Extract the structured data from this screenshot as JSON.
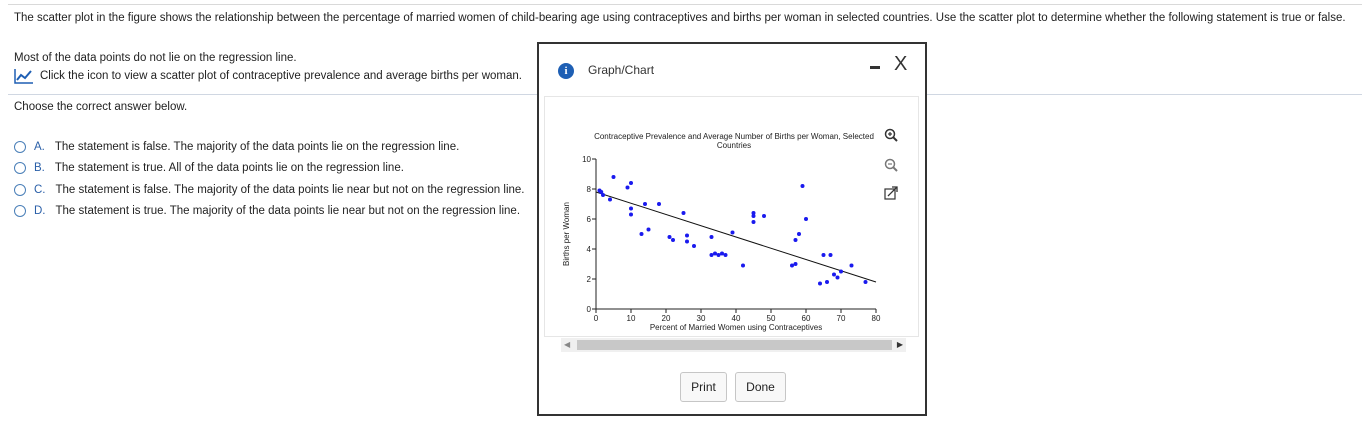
{
  "question": {
    "text": "The scatter plot in the figure shows the relationship between the percentage of married women of child-bearing age using contraceptives and births per woman in selected countries. Use the scatter plot to determine whether the following statement is true or false.",
    "statement": "Most of the data points do not lie on the regression line.",
    "icon_link": "Click the icon to view a scatter plot of contraceptive prevalence and average births per woman.",
    "choose": "Choose the correct answer below."
  },
  "options": [
    {
      "letter": "A.",
      "text": "The statement is false. The majority of the data points lie on the regression line."
    },
    {
      "letter": "B.",
      "text": "The statement is true. All of the data points lie on the regression line."
    },
    {
      "letter": "C.",
      "text": "The statement is false. The majority of the data points lie near but not on the regression line."
    },
    {
      "letter": "D.",
      "text": "The statement is true. The majority of the data points lie near but not on the regression line."
    }
  ],
  "dialog": {
    "title": "Graph/Chart",
    "info_icon": "i",
    "close_icon": "X",
    "print_label": "Print",
    "done_label": "Done"
  },
  "colors": {
    "point": "#1a1aee",
    "accent": "#2a5fa8",
    "icon_blue": "#1e5fb4"
  },
  "chart_data": {
    "type": "scatter",
    "title": "Contraceptive Prevalence and Average Number of Births per Woman, Selected Countries",
    "xlabel": "Percent of Married Women using Contraceptives",
    "ylabel": "Births per Woman",
    "xlim": [
      0,
      80
    ],
    "ylim": [
      0,
      10
    ],
    "xticks": [
      0,
      10,
      20,
      30,
      40,
      50,
      60,
      70,
      80
    ],
    "yticks": [
      0,
      2,
      4,
      6,
      8,
      10
    ],
    "x": [
      1,
      1.5,
      2,
      4,
      5,
      9,
      10,
      10,
      10,
      13,
      14,
      15,
      18,
      21,
      22,
      25,
      26,
      26,
      28,
      33,
      33,
      34,
      35,
      36,
      37,
      39,
      42,
      45,
      45,
      45,
      48,
      56,
      57,
      57,
      58,
      59,
      60,
      64,
      65,
      66,
      67,
      68,
      69,
      70,
      73,
      77
    ],
    "y": [
      7.9,
      7.8,
      7.6,
      7.3,
      8.8,
      8.1,
      8.4,
      6.7,
      6.3,
      5.0,
      7.0,
      5.3,
      7.0,
      4.8,
      4.6,
      6.4,
      4.9,
      4.5,
      4.2,
      3.6,
      4.8,
      3.7,
      3.6,
      3.7,
      3.6,
      5.1,
      2.9,
      6.4,
      6.2,
      5.8,
      6.2,
      2.9,
      3.0,
      4.6,
      5.0,
      8.2,
      6.0,
      1.7,
      3.6,
      1.8,
      3.6,
      2.3,
      2.1,
      2.5,
      2.9,
      1.8
    ],
    "regression": {
      "x": [
        0,
        80
      ],
      "y": [
        7.8,
        1.8
      ]
    },
    "grid": false
  }
}
